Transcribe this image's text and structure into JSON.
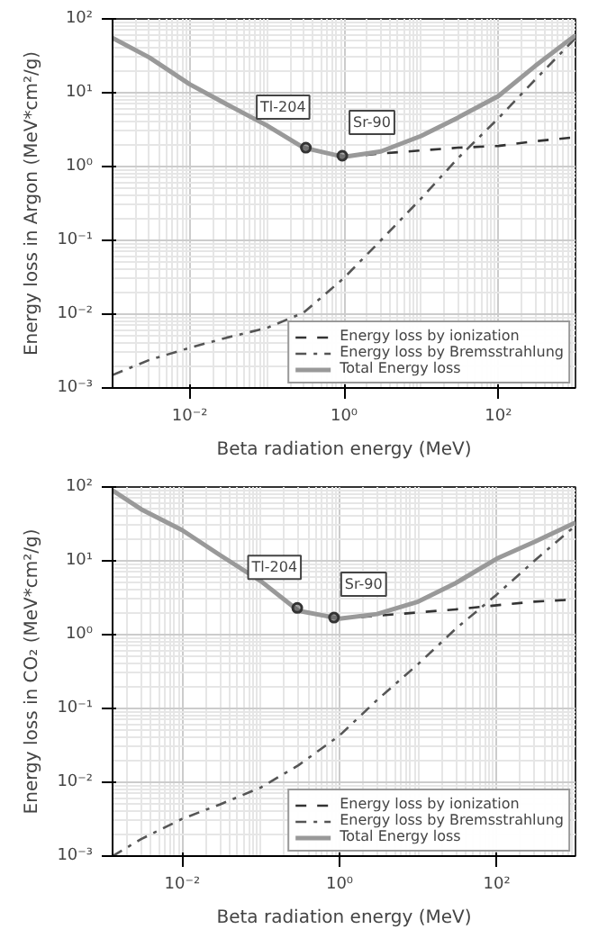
{
  "chart_data": [
    {
      "type": "line",
      "xlabel": "Beta radiation energy (MeV)",
      "ylabel": "Energy loss in Argon (MeV*cm²/g)",
      "log": "xy",
      "grid": true,
      "legend": "bottom right",
      "xlim": [
        0.001,
        1000
      ],
      "ylim": [
        0.001,
        100
      ],
      "xticks": [
        {
          "value": 0.01,
          "label": "10⁻²"
        },
        {
          "value": 1,
          "label": "10⁰"
        },
        {
          "value": 100,
          "label": "10²"
        }
      ],
      "yticks": [
        {
          "value": 0.001,
          "label": "10⁻³"
        },
        {
          "value": 0.01,
          "label": "10⁻²"
        },
        {
          "value": 0.1,
          "label": "10⁻¹"
        },
        {
          "value": 1,
          "label": "10⁰"
        },
        {
          "value": 10,
          "label": "10¹"
        },
        {
          "value": 100,
          "label": "10²"
        }
      ],
      "x": [
        0.001,
        0.003,
        0.01,
        0.03,
        0.1,
        0.3,
        1,
        3,
        10,
        30,
        100,
        300,
        1000
      ],
      "series": [
        {
          "name": "Energy loss by ionization",
          "color": "#333333",
          "line_style": "dashed",
          "values": [
            null,
            null,
            null,
            null,
            null,
            null,
            1.35,
            1.5,
            1.65,
            1.8,
            1.9,
            2.2,
            2.5
          ]
        },
        {
          "name": "Energy loss by Bremsstrahlung",
          "color": "#555555",
          "line_style": "dashdot",
          "values": [
            0.0015,
            0.0024,
            0.0035,
            0.0048,
            0.0065,
            0.0105,
            0.031,
            0.1,
            0.37,
            1.3,
            4.5,
            15,
            55
          ]
        },
        {
          "name": "Total Energy loss",
          "color": "#999999",
          "line_style": "solid",
          "values": [
            55,
            30,
            13,
            7,
            3.6,
            1.8,
            1.35,
            1.6,
            2.6,
            4.6,
            9,
            23,
            60
          ]
        },
        {
          "type": "scatter",
          "x": [
            0.32,
            0.95
          ],
          "color": "#333333",
          "marker": "circle",
          "values": [
            1.8,
            1.4
          ]
        }
      ],
      "annotations": [
        {
          "text": "Tl-204",
          "x": 0.32,
          "y": 1.8
        },
        {
          "text": "Sr-90",
          "x": 0.95,
          "y": 1.4
        }
      ]
    },
    {
      "type": "line",
      "xlabel": "Beta radiation energy (MeV)",
      "ylabel": "Energy loss in CO₂ (MeV*cm²/g)",
      "log": "xy",
      "grid": true,
      "legend": "bottom right",
      "xlim": [
        0.0013,
        1000
      ],
      "ylim": [
        0.001,
        100
      ],
      "xticks": [
        {
          "value": 0.01,
          "label": "10⁻²"
        },
        {
          "value": 1,
          "label": "10⁰"
        },
        {
          "value": 100,
          "label": "10²"
        }
      ],
      "yticks": [
        {
          "value": 0.001,
          "label": "10⁻³"
        },
        {
          "value": 0.01,
          "label": "10⁻²"
        },
        {
          "value": 0.1,
          "label": "10⁻¹"
        },
        {
          "value": 1,
          "label": "10⁰"
        },
        {
          "value": 10,
          "label": "10¹"
        },
        {
          "value": 100,
          "label": "10²"
        }
      ],
      "x": [
        0.0013,
        0.003,
        0.01,
        0.03,
        0.1,
        0.3,
        1,
        3,
        10,
        30,
        100,
        300,
        1000
      ],
      "series": [
        {
          "name": "Energy loss by ionization",
          "color": "#333333",
          "line_style": "dashed",
          "values": [
            null,
            null,
            null,
            null,
            null,
            null,
            1.65,
            1.8,
            2.0,
            2.2,
            2.5,
            2.8,
            3.0
          ]
        },
        {
          "name": "Energy loss by Bremsstrahlung",
          "color": "#555555",
          "line_style": "dashdot",
          "values": [
            0.001,
            0.0017,
            0.0032,
            0.005,
            0.0085,
            0.017,
            0.043,
            0.13,
            0.4,
            1.2,
            3.5,
            10,
            30
          ]
        },
        {
          "name": "Total Energy loss",
          "color": "#999999",
          "line_style": "solid",
          "values": [
            90,
            50,
            26,
            12,
            5.3,
            2.1,
            1.65,
            1.9,
            2.8,
            5,
            10.7,
            18,
            33
          ]
        },
        {
          "type": "scatter",
          "x": [
            0.29,
            0.85
          ],
          "color": "#333333",
          "marker": "circle",
          "values": [
            2.3,
            1.7
          ]
        }
      ],
      "annotations": [
        {
          "text": "Tl-204",
          "x": 0.29,
          "y": 2.3
        },
        {
          "text": "Sr-90",
          "x": 0.85,
          "y": 1.7
        }
      ]
    }
  ]
}
